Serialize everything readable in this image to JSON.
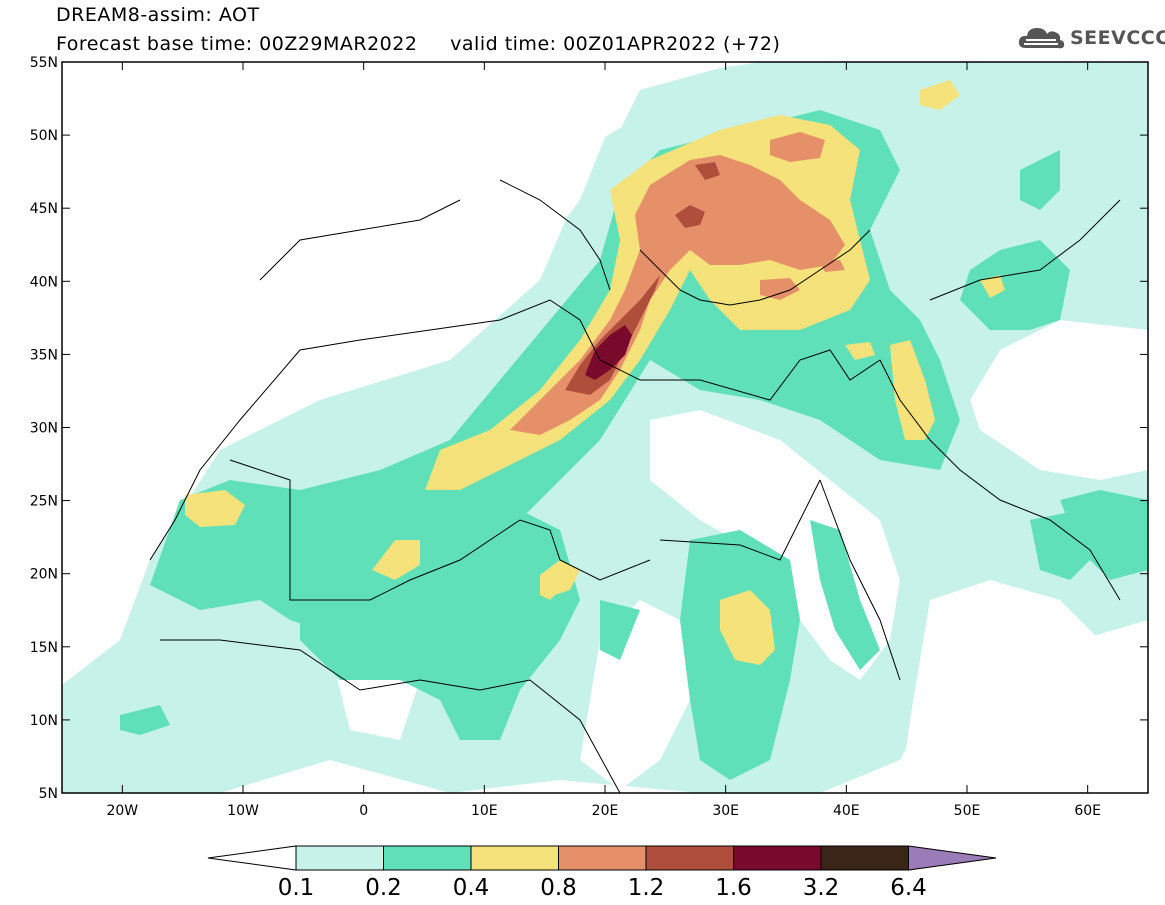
{
  "header": {
    "line1": "DREAM8-assim: AOT",
    "line2_base": "Forecast base time: 00Z29MAR2022",
    "line2_valid": "valid time: 00Z01APR2022 (+72)"
  },
  "logo": {
    "text": "SEEVCCC",
    "icon": "cloud-icon"
  },
  "axes": {
    "lat_labels": [
      "55N",
      "50N",
      "45N",
      "40N",
      "35N",
      "30N",
      "25N",
      "20N",
      "15N",
      "10N",
      "5N"
    ],
    "lon_labels": [
      "20W",
      "10W",
      "0",
      "10E",
      "20E",
      "30E",
      "40E",
      "50E",
      "60E"
    ]
  },
  "colorbar": {
    "labels": [
      "0.1",
      "0.2",
      "0.4",
      "0.8",
      "1.2",
      "1.6",
      "3.2",
      "6.4"
    ],
    "colors": [
      "#c6f2e9",
      "#5fe0b8",
      "#f5e27a",
      "#e6906a",
      "#b04e3c",
      "#7a0a2c",
      "#3a2518",
      "#9a7cb8"
    ]
  },
  "chart_data": {
    "type": "heatmap",
    "variable": "AOT",
    "lon_range": [
      -25,
      65
    ],
    "lat_range": [
      5,
      55
    ],
    "lon_ticks": [
      -20,
      -10,
      0,
      10,
      20,
      30,
      40,
      50,
      60
    ],
    "lat_ticks": [
      55,
      50,
      45,
      40,
      35,
      30,
      25,
      20,
      15,
      10,
      5
    ],
    "levels": [
      0.1,
      0.2,
      0.4,
      0.8,
      1.2,
      1.6,
      3.2,
      6.4
    ],
    "features": [
      {
        "level": 3.2,
        "approx_center": [
          19.5,
          35.0
        ]
      },
      {
        "level": 1.6,
        "approx_center": [
          26.5,
          44.5
        ]
      },
      {
        "level": 0.8,
        "approx_centers": [
          [
            18.5,
            35.5
          ],
          [
            27,
            43
          ],
          [
            35.5,
            48.5
          ]
        ]
      },
      {
        "level": 0.4,
        "approx_centers": [
          [
            -12.5,
            24.5
          ],
          [
            4,
            21
          ],
          [
            16.5,
            20
          ],
          [
            32,
            16.5
          ],
          [
            43.5,
            40
          ],
          [
            50,
            39
          ],
          [
            46,
            33
          ],
          [
            12,
            27
          ]
        ]
      }
    ]
  }
}
